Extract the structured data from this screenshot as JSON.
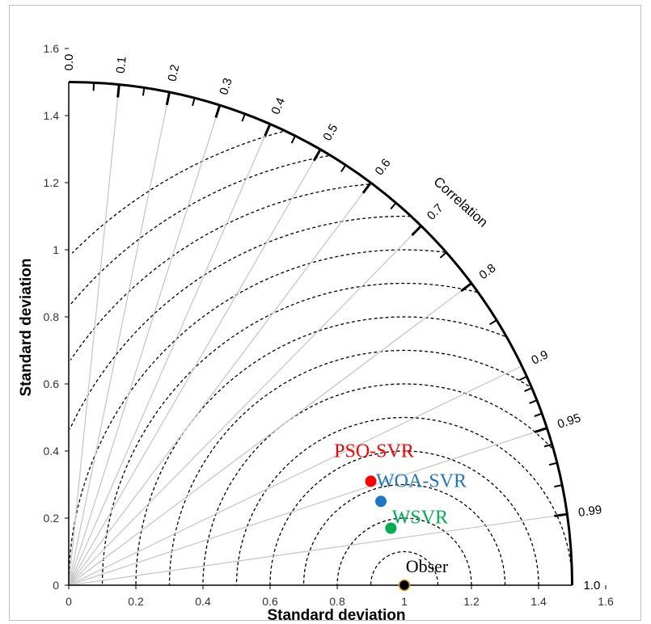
{
  "chart_data": {
    "type": "scatter",
    "subtype": "taylor-diagram",
    "xlabel": "Standard deviation",
    "ylabel": "Standard deviation",
    "arc_label": "Correlation",
    "std_range": [
      0,
      1.6
    ],
    "std_max_arc": 1.5,
    "x_ticks": [
      "0",
      "0.2",
      "0.4",
      "0.6",
      "0.8",
      "1",
      "1.2",
      "1.4",
      "1.6"
    ],
    "y_ticks": [
      "0",
      "0.2",
      "0.4",
      "0.6",
      "0.8",
      "1",
      "1.2",
      "1.4",
      "1.6"
    ],
    "correlation_labels": [
      "0.0",
      "0.1",
      "0.2",
      "0.3",
      "0.4",
      "0.5",
      "0.6",
      "0.7",
      "0.8",
      "0.9",
      "0.95",
      "0.99",
      "1.0"
    ],
    "rms_contours": [
      0.1,
      0.2,
      0.3,
      0.4,
      0.5,
      0.6,
      0.7,
      0.8,
      0.9,
      1.0,
      1.1,
      1.2,
      1.3,
      1.4
    ],
    "grid": true,
    "points": [
      {
        "name": "PSO-SVR",
        "x": 0.9,
        "y": 0.31,
        "color": "#ff0000"
      },
      {
        "name": "WOA-SVR",
        "x": 0.93,
        "y": 0.25,
        "color": "#1f77c4"
      },
      {
        "name": "WSVR",
        "x": 0.96,
        "y": 0.17,
        "color": "#00b050"
      },
      {
        "name": "Obser",
        "x": 1.0,
        "y": 0.0,
        "color": "#000000"
      }
    ]
  }
}
